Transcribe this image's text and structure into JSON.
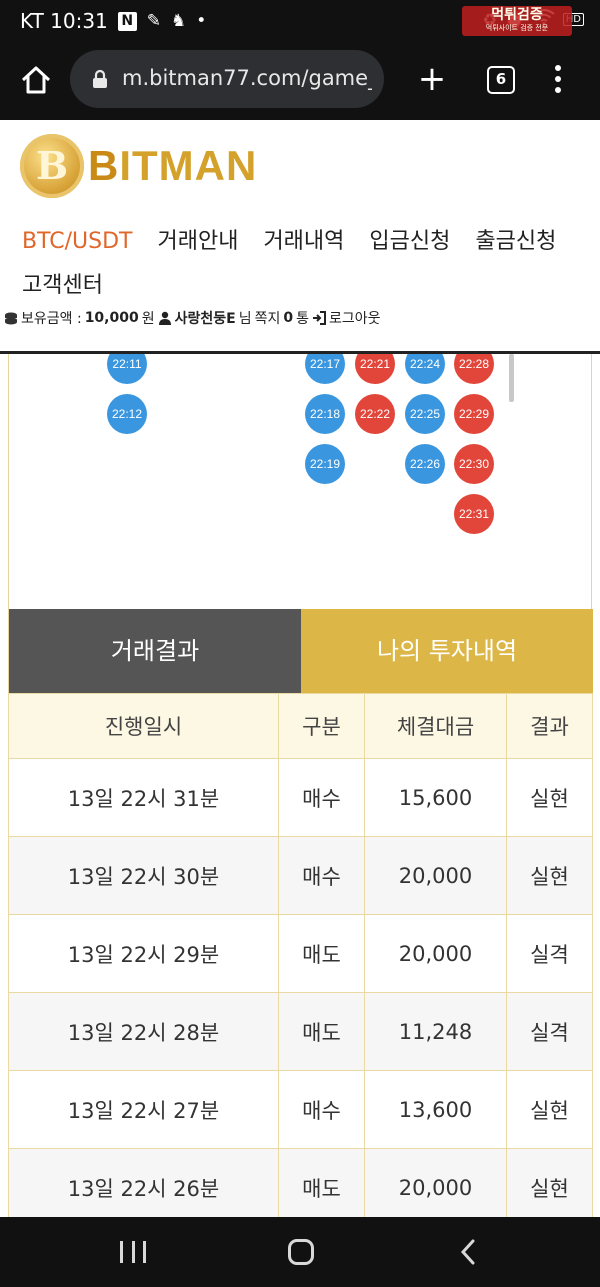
{
  "status_bar": {
    "carrier_time": "KT 10:31",
    "notification_letter": "N",
    "hd_label": "HD",
    "watermark_title": "먹튀검증",
    "watermark_sub": "먹튀사이트 검증 전문"
  },
  "browser": {
    "url": "m.bitman77.com/game_",
    "tab_count": "6"
  },
  "site": {
    "brand_coin": "B",
    "brand_first": "B",
    "brand_rest": "ITMAN",
    "nav": [
      {
        "label": "BTC/USDT",
        "active": true
      },
      {
        "label": "거래안내"
      },
      {
        "label": "거래내역"
      },
      {
        "label": "입금신청"
      },
      {
        "label": "출금신청"
      },
      {
        "label": "고객센터"
      }
    ],
    "user": {
      "balance_label": "보유금액 :",
      "balance_value": "10,000",
      "balance_unit": "원",
      "nickname": "사랑천둥E",
      "suffix": "님",
      "message_label": "쪽지",
      "message_count": "0",
      "message_unit": "통",
      "logout": "로그아웃"
    }
  },
  "rounds": [
    {
      "label": "22:11",
      "color": "#3a97df",
      "kind": "blue"
    },
    {
      "label": "22:12",
      "color": "#3a97df",
      "kind": "blue"
    },
    {
      "label": "22:17",
      "color": "#3a97df",
      "kind": "blue"
    },
    {
      "label": "22:18",
      "color": "#3a97df",
      "kind": "blue"
    },
    {
      "label": "22:19",
      "color": "#3a97df",
      "kind": "blue"
    },
    {
      "label": "22:21",
      "color": "#e2463a",
      "kind": "red"
    },
    {
      "label": "22:22",
      "color": "#e2463a",
      "kind": "red"
    },
    {
      "label": "22:24",
      "color": "#3a97df",
      "kind": "blue"
    },
    {
      "label": "22:25",
      "color": "#3a97df",
      "kind": "blue"
    },
    {
      "label": "22:26",
      "color": "#3a97df",
      "kind": "blue"
    },
    {
      "label": "22:28",
      "color": "#e2463a",
      "kind": "red"
    },
    {
      "label": "22:29",
      "color": "#e2463a",
      "kind": "red"
    },
    {
      "label": "22:30",
      "color": "#e2463a",
      "kind": "red"
    },
    {
      "label": "22:31",
      "color": "#e2463a",
      "kind": "red"
    }
  ],
  "tabs": {
    "results": "거래결과",
    "my_investments": "나의 투자내역"
  },
  "history": {
    "headers": [
      "진행일시",
      "구분",
      "체결대금",
      "결과"
    ],
    "rows": [
      {
        "time": "13일 22시 31분",
        "type": "매수",
        "amount": "15,600",
        "result": "실현"
      },
      {
        "time": "13일 22시 30분",
        "type": "매수",
        "amount": "20,000",
        "result": "실현"
      },
      {
        "time": "13일 22시 29분",
        "type": "매도",
        "amount": "20,000",
        "result": "실격"
      },
      {
        "time": "13일 22시 28분",
        "type": "매도",
        "amount": "11,248",
        "result": "실격"
      },
      {
        "time": "13일 22시 27분",
        "type": "매수",
        "amount": "13,600",
        "result": "실현"
      },
      {
        "time": "13일 22시 26분",
        "type": "매도",
        "amount": "20,000",
        "result": "실현"
      }
    ],
    "colors": {
      "buy": "#d23a2c",
      "sell": "#3a8fcf"
    }
  }
}
